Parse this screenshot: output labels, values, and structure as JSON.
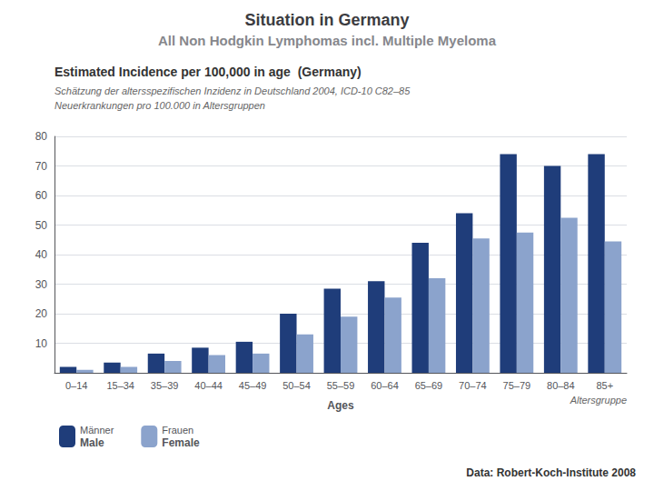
{
  "chart_data": {
    "type": "bar",
    "title": "Situation in Germany",
    "subtitle": "All Non Hodgkin Lymphomas incl. Multiple Myeloma",
    "annotations": [
      "Estimated Incidence per 100,000 in age  (Germany)",
      "Schätzung der altersspezifischen Inzidenz in Deutschland 2004, ICD-10 C82–85",
      "Neuerkrankungen pro 100.000 in Altersgruppen",
      "Altersgruppe",
      "Männer",
      "Frauen",
      "Data: Robert-Koch-Institute 2008"
    ],
    "xlabel": "Ages",
    "categories": [
      "0–14",
      "15–34",
      "35–39",
      "40–44",
      "45–49",
      "50–54",
      "55–59",
      "60–64",
      "65–69",
      "70–74",
      "75–79",
      "80–84",
      "85+"
    ],
    "series": [
      {
        "name": "Male",
        "color": "#1F3D7A",
        "values": [
          2.0,
          3.5,
          6.5,
          8.5,
          10.5,
          20.0,
          28.5,
          31.0,
          44.0,
          54.0,
          74.0,
          70.0,
          74.0
        ]
      },
      {
        "name": "Female",
        "color": "#8BA3CC",
        "values": [
          1.0,
          2.0,
          4.0,
          6.0,
          6.5,
          13.0,
          19.0,
          25.5,
          32.0,
          45.5,
          47.5,
          52.5,
          44.5
        ]
      }
    ],
    "ylim": [
      0,
      80
    ],
    "yticks": [
      10,
      20,
      30,
      40,
      50,
      60,
      70,
      80
    ],
    "grid": true,
    "legend": "lower left"
  }
}
